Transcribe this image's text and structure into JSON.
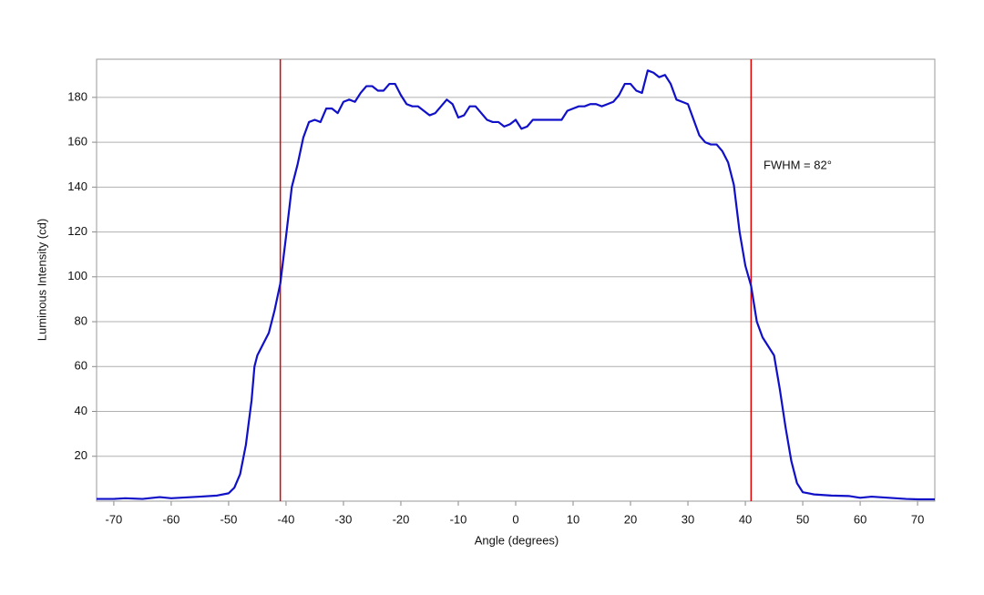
{
  "chart_data": {
    "type": "line",
    "xlabel": "Angle (degrees)",
    "ylabel": "Luminous Intensity (cd)",
    "annotation": "FWHM = 82°",
    "xlim": [
      -73,
      73
    ],
    "xticks": [
      -70,
      -60,
      -50,
      -40,
      -30,
      -20,
      -10,
      0,
      10,
      20,
      30,
      40,
      50,
      60,
      70
    ],
    "ylim": [
      0,
      197
    ],
    "yticks": [
      20,
      40,
      60,
      80,
      100,
      120,
      140,
      160,
      180
    ],
    "grid": true,
    "vlines": [
      -41,
      41
    ],
    "vline_color": "#e00000",
    "series": [
      {
        "name": "Luminous Intensity",
        "color": "#1010c8",
        "x": [
          -73,
          -70,
          -68,
          -65,
          -62,
          -60,
          -55,
          -52,
          -50,
          -49,
          -48,
          -47,
          -46,
          -45.5,
          -45,
          -44,
          -43,
          -42,
          -41,
          -40,
          -39,
          -38,
          -37,
          -36,
          -35,
          -34,
          -33,
          -32,
          -31,
          -30,
          -29,
          -28,
          -27,
          -26,
          -25,
          -24,
          -23,
          -22,
          -21,
          -20,
          -19,
          -18,
          -17,
          -16,
          -15,
          -14,
          -13,
          -12,
          -11,
          -10,
          -9,
          -8,
          -7,
          -6,
          -5,
          -4,
          -3,
          -2,
          -1,
          0,
          1,
          2,
          3,
          4,
          5,
          6,
          7,
          8,
          9,
          10,
          11,
          12,
          13,
          14,
          15,
          16,
          17,
          18,
          19,
          20,
          21,
          22,
          23,
          24,
          25,
          26,
          27,
          28,
          29,
          30,
          31,
          32,
          33,
          34,
          35,
          36,
          37,
          38,
          39,
          40,
          41,
          42,
          43,
          44,
          45,
          46,
          47,
          48,
          49,
          50,
          52,
          55,
          58,
          60,
          62,
          65,
          68,
          70,
          73
        ],
        "values": [
          1,
          1,
          1.3,
          1,
          1.8,
          1.3,
          2,
          2.5,
          3.5,
          6,
          12,
          25,
          45,
          60,
          65,
          70,
          75,
          85,
          97,
          118,
          140,
          150,
          162,
          169,
          170,
          169,
          175,
          175,
          173,
          178,
          179,
          178,
          182,
          185,
          185,
          183,
          183,
          186,
          186,
          181,
          177,
          176,
          176,
          174,
          172,
          173,
          176,
          179,
          177,
          171,
          172,
          176,
          176,
          173,
          170,
          169,
          169,
          167,
          168,
          170,
          166,
          167,
          170,
          170,
          170,
          170,
          170,
          170,
          174,
          175,
          176,
          176,
          177,
          177,
          176,
          177,
          178,
          181,
          186,
          186,
          183,
          182,
          192,
          191,
          189,
          190,
          186,
          179,
          178,
          177,
          170,
          163,
          160,
          159,
          159,
          156,
          151,
          141,
          120,
          105,
          96,
          80,
          73,
          69,
          65,
          50,
          33,
          18,
          8,
          4,
          3,
          2.5,
          2.3,
          1.5,
          2,
          1.5,
          1,
          0.8,
          0.8
        ]
      }
    ]
  }
}
